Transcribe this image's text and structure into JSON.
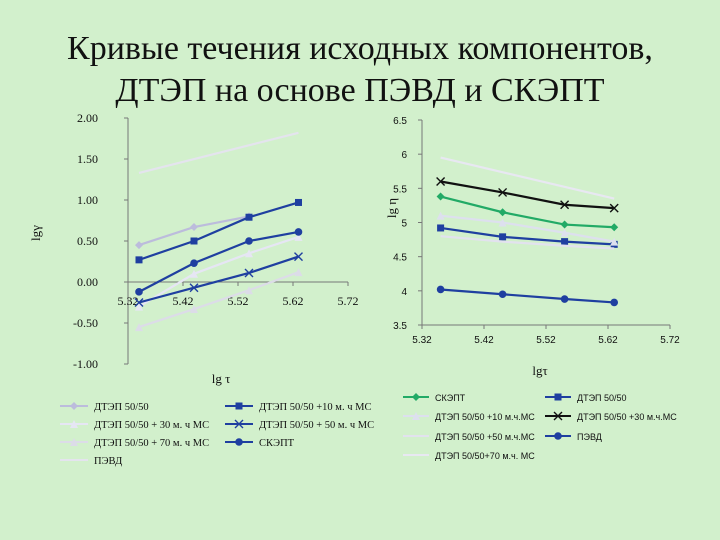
{
  "slide": {
    "title_line1": "Кривые течения исходных компонентов,",
    "title_line2": "ДТЭП на основе ПЭВД и СКЭПТ"
  },
  "chart_data": [
    {
      "type": "line",
      "xlabel": "lg τ",
      "ylabel": "lgγ",
      "xlim": [
        5.32,
        5.72
      ],
      "ylim": [
        -1.0,
        2.0
      ],
      "x_ticks": [
        "5.32",
        "5.42",
        "5.52",
        "5.62",
        "5.72"
      ],
      "y_ticks": [
        "2.00",
        "1.50",
        "1.00",
        "0.50",
        "0.00",
        "-0.50",
        "-1.00"
      ],
      "legend_position": "bottom",
      "series": [
        {
          "name": "ДТЭП 50/50",
          "color": "#bcbcdc",
          "marker": "diamond",
          "x": [
            5.34,
            5.44,
            5.54
          ],
          "y": [
            0.45,
            0.67,
            0.8
          ]
        },
        {
          "name": "ДТЭП 50/50 +10 м. ч МС",
          "color": "#1f3fa0",
          "marker": "square",
          "x": [
            5.34,
            5.44,
            5.54,
            5.63
          ],
          "y": [
            0.27,
            0.5,
            0.79,
            0.97
          ]
        },
        {
          "name": "ДТЭП 50/50 + 30 м. ч МС",
          "color": "#e6e6f4",
          "marker": "triangle",
          "x": [
            5.34,
            5.44,
            5.54,
            5.63
          ],
          "y": [
            -0.3,
            0.1,
            0.35,
            0.55
          ]
        },
        {
          "name": "ДТЭП 50/50 + 50 м. ч МС",
          "color": "#1f3fa0",
          "marker": "x",
          "x": [
            5.34,
            5.44,
            5.54,
            5.63
          ],
          "y": [
            -0.25,
            -0.07,
            0.11,
            0.31
          ]
        },
        {
          "name": "ДТЭП 50/50 + 70 м. ч МС",
          "color": "#dcdce8",
          "marker": "triangle",
          "x": [
            5.34,
            5.44,
            5.54,
            5.63
          ],
          "y": [
            -0.55,
            -0.33,
            -0.1,
            0.12
          ]
        },
        {
          "name": "СКЭПТ",
          "color": "#1f3fa0",
          "marker": "circle",
          "x": [
            5.34,
            5.44,
            5.54,
            5.63
          ],
          "y": [
            -0.12,
            0.23,
            0.5,
            0.61
          ]
        },
        {
          "name": "ПЭВД",
          "color": "#e4e4ee",
          "marker": "none",
          "x": [
            5.34,
            5.63
          ],
          "y": [
            1.33,
            1.82
          ]
        }
      ]
    },
    {
      "type": "line",
      "xlabel": "lgτ",
      "ylabel": "lg η",
      "xlim": [
        5.32,
        5.72
      ],
      "ylim": [
        3.5,
        6.5
      ],
      "x_ticks": [
        "5.32",
        "5.42",
        "5.52",
        "5.62",
        "5.72"
      ],
      "y_ticks": [
        "6.5",
        "6",
        "5.5",
        "5",
        "4.5",
        "4",
        "3.5"
      ],
      "legend_position": "bottom",
      "series": [
        {
          "name": "СКЭПТ",
          "color": "#22aa66",
          "marker": "diamond",
          "x": [
            5.35,
            5.45,
            5.55,
            5.63
          ],
          "y": [
            5.38,
            5.15,
            4.97,
            4.93
          ]
        },
        {
          "name": "ДТЭП 50/50",
          "color": "#1f3fa0",
          "marker": "square",
          "x": [
            5.35,
            5.45,
            5.55,
            5.63
          ],
          "y": [
            4.92,
            4.79,
            4.72,
            4.68
          ]
        },
        {
          "name": "ДТЭП 50/50 +10 м.ч.МС",
          "color": "#dde0ee",
          "marker": "triangle",
          "x": [
            5.35,
            5.45,
            5.55,
            5.63
          ],
          "y": [
            5.1,
            5.0,
            4.85,
            4.72
          ]
        },
        {
          "name": "ДТЭП 50/50 +30 м.ч.МС",
          "color": "#111111",
          "marker": "x",
          "x": [
            5.35,
            5.45,
            5.55,
            5.63
          ],
          "y": [
            5.6,
            5.44,
            5.26,
            5.21
          ]
        },
        {
          "name": "ДТЭП 50/50 +50 м.ч.МС",
          "color": "#e2e2ee",
          "marker": "none",
          "x": [
            5.35,
            5.45,
            5.55,
            5.63
          ],
          "y": [
            4.8,
            4.72,
            4.66,
            4.62
          ]
        },
        {
          "name": "ПЭВД",
          "color": "#1f3fa0",
          "marker": "circle",
          "x": [
            5.35,
            5.45,
            5.55,
            5.63
          ],
          "y": [
            4.02,
            3.95,
            3.88,
            3.83
          ]
        },
        {
          "name": "ДТЭП 50/50+70 м.ч. МС",
          "color": "#e8e8f2",
          "marker": "none",
          "x": [
            5.35,
            5.63
          ],
          "y": [
            5.95,
            5.35
          ]
        }
      ]
    }
  ]
}
